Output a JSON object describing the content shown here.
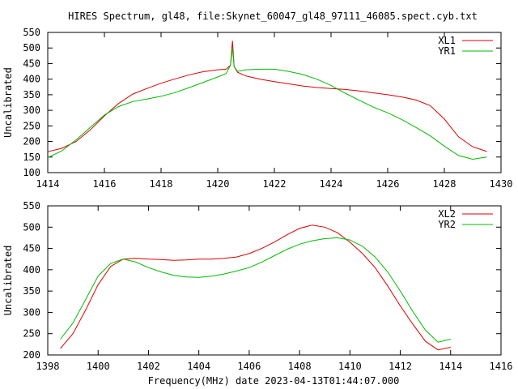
{
  "title": "HIRES Spectrum, gl48, file:Skynet_60047_gl48_97111_46085.spect.cyb.txt",
  "footer": "Frequency(MHz) date 2023-04-13T01:44:07.000",
  "chart_data": [
    {
      "type": "line",
      "ylabel": "Uncalibrated",
      "xlim": [
        1414,
        1430
      ],
      "ylim": [
        100,
        550
      ],
      "xticks": [
        1414,
        1416,
        1418,
        1420,
        1422,
        1424,
        1426,
        1428,
        1430
      ],
      "yticks": [
        100,
        150,
        200,
        250,
        300,
        350,
        400,
        450,
        500,
        550
      ],
      "legend_position": "top-right",
      "series": [
        {
          "name": "XL1",
          "color": "#dd0000",
          "x": [
            1414.0,
            1414.5,
            1415.0,
            1415.5,
            1416.0,
            1416.5,
            1417.0,
            1417.5,
            1418.0,
            1418.5,
            1419.0,
            1419.5,
            1420.0,
            1420.3,
            1420.45,
            1420.52,
            1420.58,
            1420.7,
            1421.0,
            1421.5,
            1422.0,
            1422.5,
            1423.0,
            1423.5,
            1424.0,
            1424.5,
            1425.0,
            1425.5,
            1426.0,
            1426.5,
            1427.0,
            1427.5,
            1428.0,
            1428.5,
            1429.0,
            1429.5
          ],
          "y": [
            167,
            178,
            200,
            237,
            282,
            322,
            352,
            370,
            387,
            401,
            414,
            424,
            430,
            432,
            445,
            523,
            440,
            422,
            410,
            400,
            392,
            385,
            378,
            373,
            370,
            367,
            362,
            356,
            350,
            343,
            333,
            315,
            272,
            215,
            183,
            168
          ]
        },
        {
          "name": "YR1",
          "color": "#00bb00",
          "x": [
            1414.0,
            1414.5,
            1415.0,
            1415.5,
            1416.0,
            1416.5,
            1417.0,
            1417.5,
            1418.0,
            1418.5,
            1419.0,
            1419.5,
            1420.0,
            1420.3,
            1420.45,
            1420.52,
            1420.58,
            1420.7,
            1421.0,
            1421.5,
            1422.0,
            1422.5,
            1423.0,
            1423.5,
            1424.0,
            1424.5,
            1425.0,
            1425.5,
            1426.0,
            1426.5,
            1427.0,
            1427.5,
            1428.0,
            1428.5,
            1429.0,
            1429.5
          ],
          "y": [
            148,
            170,
            205,
            245,
            285,
            312,
            328,
            336,
            345,
            357,
            373,
            390,
            407,
            418,
            445,
            500,
            440,
            425,
            430,
            432,
            432,
            425,
            415,
            400,
            380,
            355,
            332,
            310,
            292,
            270,
            245,
            218,
            185,
            155,
            143,
            150
          ]
        }
      ]
    },
    {
      "type": "line",
      "ylabel": "Uncalibrated",
      "xlabel": "Frequency(MHz) date 2023-04-13T01:44:07.000",
      "xlim": [
        1398,
        1416
      ],
      "ylim": [
        200,
        550
      ],
      "xticks": [
        1398,
        1400,
        1402,
        1404,
        1406,
        1408,
        1410,
        1412,
        1414,
        1416
      ],
      "yticks": [
        200,
        250,
        300,
        350,
        400,
        450,
        500,
        550
      ],
      "legend_position": "top-right",
      "series": [
        {
          "name": "XL2",
          "color": "#dd0000",
          "x": [
            1398.5,
            1399.0,
            1399.5,
            1400.0,
            1400.5,
            1401.0,
            1401.5,
            1402.0,
            1402.5,
            1403.0,
            1403.5,
            1404.0,
            1404.5,
            1405.0,
            1405.5,
            1406.0,
            1406.5,
            1407.0,
            1407.5,
            1408.0,
            1408.5,
            1409.0,
            1409.5,
            1410.0,
            1410.5,
            1411.0,
            1411.5,
            1412.0,
            1412.5,
            1413.0,
            1413.5,
            1414.0
          ],
          "y": [
            215,
            250,
            305,
            365,
            408,
            425,
            427,
            425,
            424,
            422,
            423,
            425,
            425,
            427,
            430,
            438,
            450,
            465,
            482,
            497,
            505,
            500,
            487,
            465,
            438,
            405,
            362,
            315,
            272,
            232,
            212,
            218
          ]
        },
        {
          "name": "YR2",
          "color": "#00bb00",
          "x": [
            1398.5,
            1399.0,
            1399.5,
            1400.0,
            1400.5,
            1401.0,
            1401.5,
            1402.0,
            1402.5,
            1403.0,
            1403.5,
            1404.0,
            1404.5,
            1405.0,
            1405.5,
            1406.0,
            1406.5,
            1407.0,
            1407.5,
            1408.0,
            1408.5,
            1409.0,
            1409.5,
            1410.0,
            1410.5,
            1411.0,
            1411.5,
            1412.0,
            1412.5,
            1413.0,
            1413.5,
            1414.0
          ],
          "y": [
            237,
            275,
            330,
            385,
            415,
            425,
            418,
            405,
            395,
            387,
            383,
            382,
            385,
            390,
            397,
            405,
            418,
            433,
            448,
            460,
            468,
            473,
            475,
            470,
            455,
            430,
            395,
            350,
            302,
            258,
            230,
            237
          ]
        }
      ]
    }
  ]
}
